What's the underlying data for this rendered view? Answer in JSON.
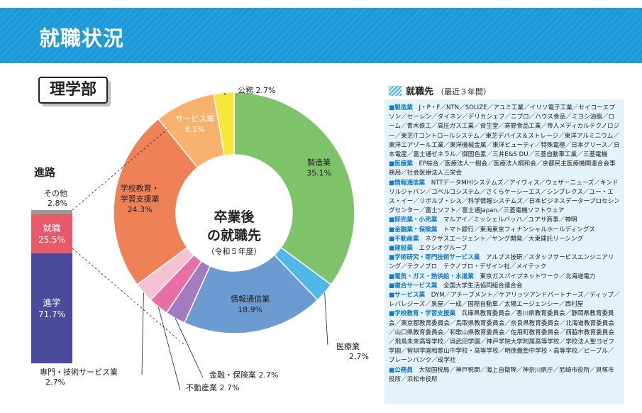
{
  "header": {
    "title": "就職状況",
    "department": "理学部"
  },
  "career": {
    "title": "進路",
    "other_label": "その他",
    "other_pct": "2.8%",
    "job_label": "就職",
    "job_pct": "25.5%",
    "go_label": "進学",
    "go_pct": "71.7%"
  },
  "colors": {
    "banner": "#1a9ad8",
    "accent": "#1478c8",
    "panel_bg": "#e3f2fb"
  },
  "pie": {
    "center_title_1": "卒業後",
    "center_title_2": "の就職先",
    "center_sub": "（令和５年度）"
  },
  "chart_data": [
    {
      "type": "pie",
      "title": "卒業後の就職先（令和５年度）",
      "slices": [
        {
          "name": "製造業",
          "value": 35.1,
          "label": "35.1%",
          "color": "#7ec36a"
        },
        {
          "name": "医療業",
          "value": 2.7,
          "label": "2.7%",
          "color": "#4fb8e8"
        },
        {
          "name": "情報通信業",
          "value": 18.9,
          "label": "18.9%",
          "color": "#6b9bd1"
        },
        {
          "name": "金融・保険業",
          "value": 2.7,
          "label": "2.7%",
          "color": "#a47bbf"
        },
        {
          "name": "不動産業",
          "value": 2.7,
          "label": "2.7%",
          "color": "#e86fa6"
        },
        {
          "name": "専門・技術サービス業",
          "value": 2.7,
          "label": "2.7%",
          "color": "#f4c2d4"
        },
        {
          "name": "学校教育・学習支援業",
          "value": 24.3,
          "label": "24.3%",
          "color": "#ef8157"
        },
        {
          "name": "サービス業",
          "value": 8.1,
          "label": "8.1%",
          "color": "#f7b26e"
        },
        {
          "name": "公務",
          "value": 2.7,
          "label": "2.7%",
          "color": "#f8e53a"
        }
      ]
    },
    {
      "type": "bar",
      "title": "進路",
      "stacked": true,
      "categories": [
        "進学",
        "就職",
        "その他"
      ],
      "values": [
        71.7,
        25.5,
        2.8
      ],
      "colors": [
        "#4a4b9d",
        "#e85a6a",
        "#9a9a9a"
      ]
    }
  ],
  "employers": {
    "title": "就職先",
    "subtitle": "（最近３年間）",
    "entries": [
      {
        "category": "製造業",
        "text": "J・P・F／NTN／SOLIZE／アユミ工業／イリソ電子工業／セイコーエプソン／セーレン／ダイネン／デリカシェフ／ニプロ／ハウス食品／ミヨシ油脂／ローム／青木鉄工／高圧ガス工業／資生堂／寒野食品工業／帝人メディカルテクノロジー／東芝ITコントロールシステム／東芝デバイス＆ストレージ／東洋アルミニウム／東洋エアゾール工業／東洋機械金属／東洋ビューティ／特殊電極／日本グリース／日本電産／富士通ゼネラル／御国色素／三井E&S DU／三菱自動車工業／三菱電機"
      },
      {
        "category": "医療業",
        "text": "EP綜合／医療法人一樹会／医療法人桐和会／京都民主医療機関連合会事務局／社会医療法人三栄会"
      },
      {
        "category": "情報通信業",
        "text": "NTTデータMHIシステムズ／アイヴィス／ウェザーニューズ／キンドリルジャパン／コベルコシステム／さくらケーシーエス／シンプレクス／ユー・エス・イー／リボルブ・シス／科学情報システムズ／日本ビジネスデータープロセシングセンター／富士ソフト／富士通Japan／三菱電機ソフトウェア"
      },
      {
        "category": "卸売業・小売業",
        "text": "マルアイ／ミッシェルバッハ／ユアサ商事／神明"
      },
      {
        "category": "金融業・保険業",
        "text": "トマト銀行／東海東京フィナンシャルホールディングス"
      },
      {
        "category": "不動産業",
        "text": "ネクサスエージェント／ヤング開発／大東建託リーシング"
      },
      {
        "category": "建設業",
        "text": "エクシオグループ"
      },
      {
        "category": "学術研究・専門技術サービス業",
        "text": "アルプス技研／スタッフサービスエンジニアリング／テクノプロ　テクノプロ・デザイン社／メイテック"
      },
      {
        "category": "電気・ガス・熱供給・水道業",
        "text": "東京ガスパイプネットワーク／北海道電力"
      },
      {
        "category": "複合サービス業",
        "text": "全国大学生活協同組合連合会"
      },
      {
        "category": "サービス業",
        "text": "DYM／アチーブメント／ケアリッツアンドパートナーズ／ディップ／レバレジーズ／泉屋／一成／国際自動車／太陽エージェンシー／西村屋"
      },
      {
        "category": "学校教育・学習支援業",
        "text": "兵庫県教育委員会／香川県教育委員会／静岡県教育委員会／東京都教育委員会／鳥取県教育委員会／奈良県教育委員会／北海道教育委員会／山口県教育委員会／和歌山県教育委員会／佐用町教育委員会／西脇市教育委員会／飛鳥未来高等学校／呉武田学園／神戸学院大学附属高等学校／学校法人聖ヨゼフ学園／智辯学園和歌山中学校・高等学校／明徳義塾中学校・高等学校／ピープル／ブレーンバンク／成学社"
      },
      {
        "category": "公務員",
        "text": "大阪国税局／神戸税関／海上自衛隊／神奈川県庁／尼崎市役所／貝塚市役所／浜松市役所"
      }
    ]
  }
}
